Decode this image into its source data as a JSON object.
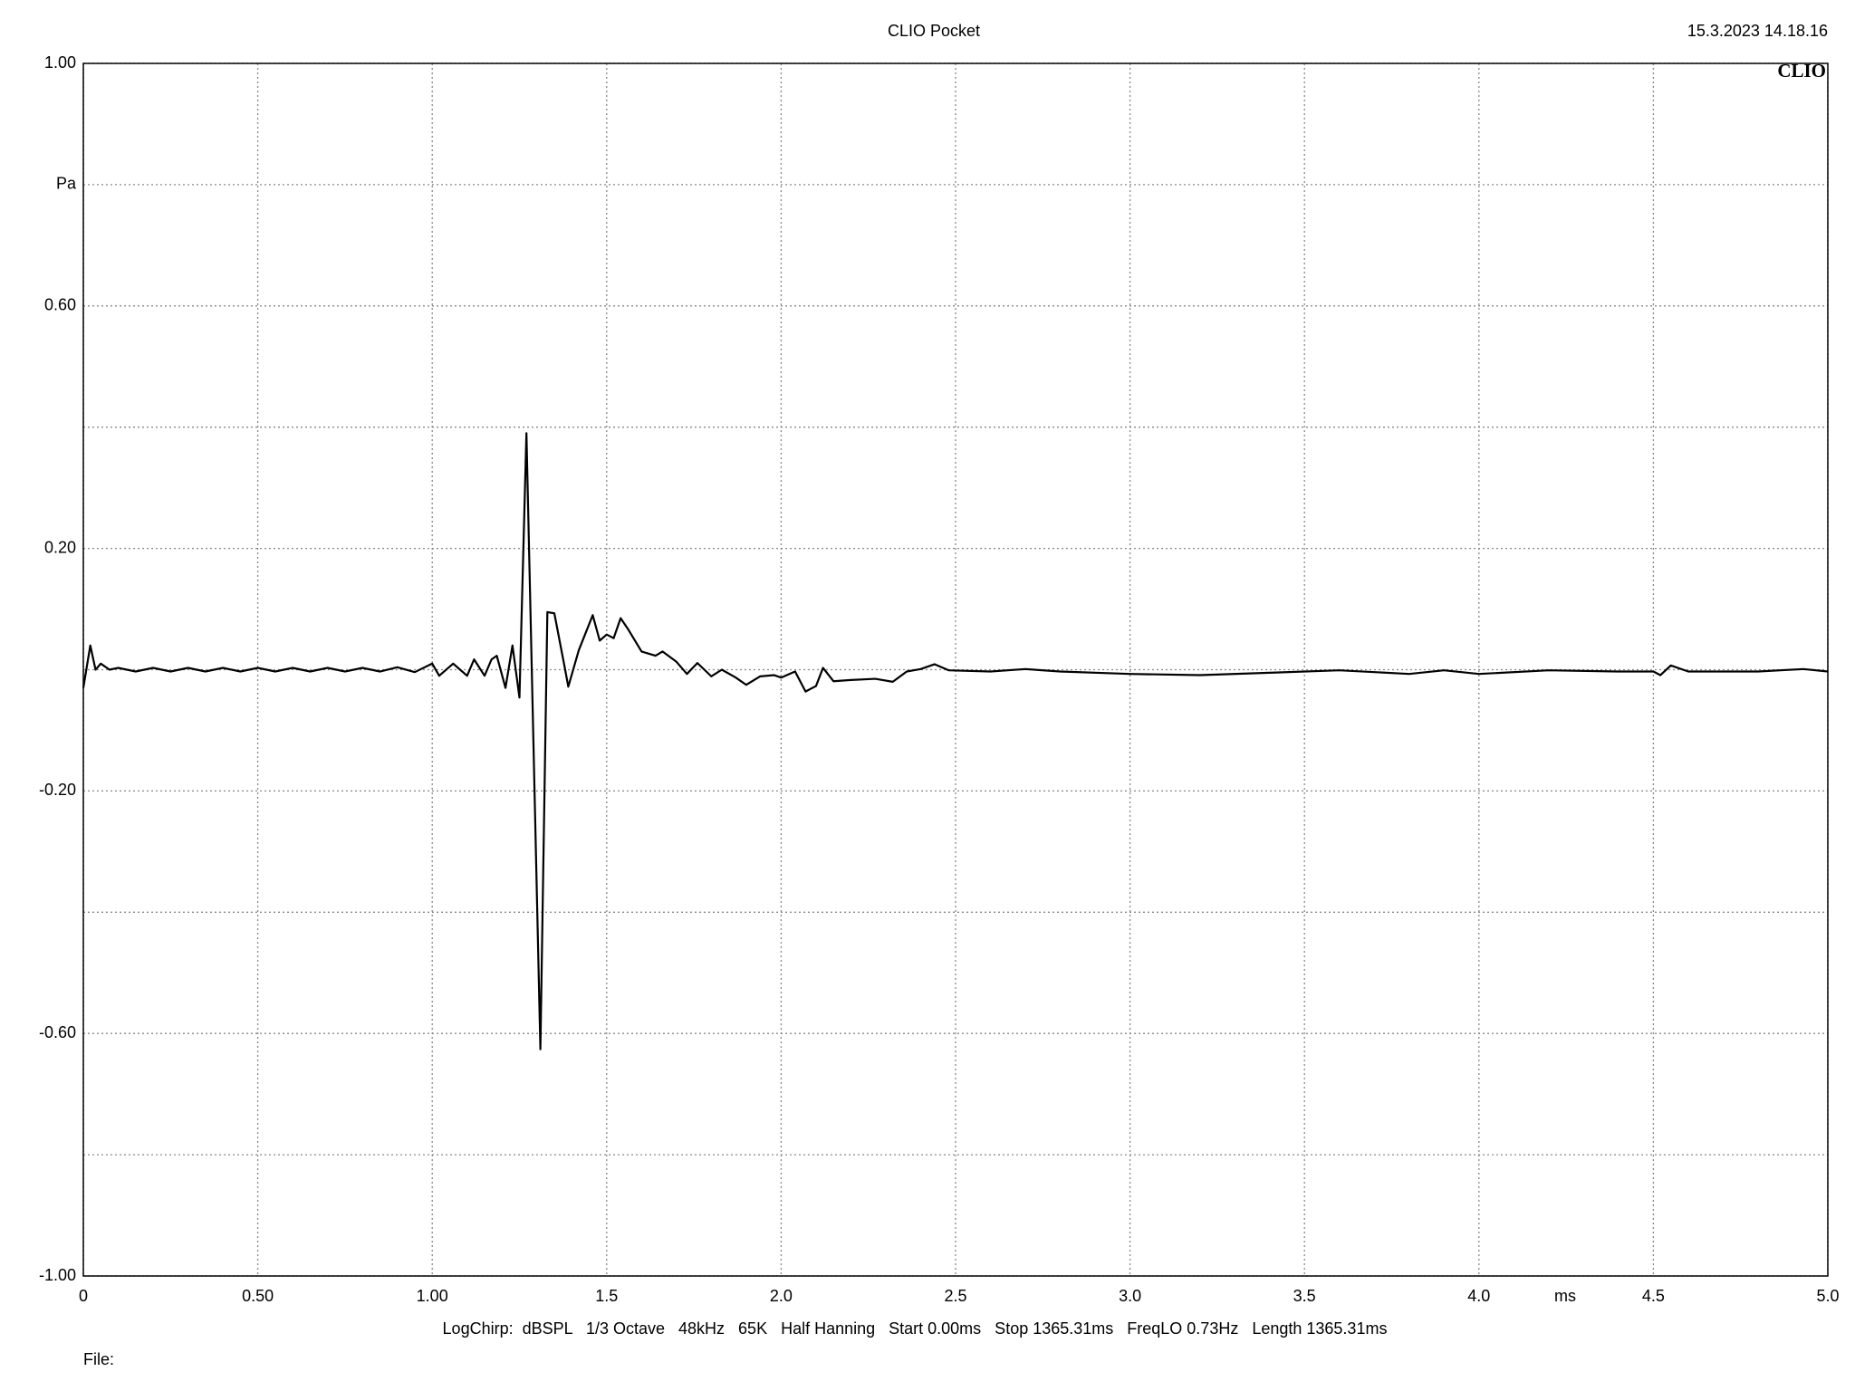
{
  "chart_data": {
    "type": "line",
    "title": "CLIO Pocket",
    "timestamp": "15.3.2023 14.18.16",
    "logo": "CLIO",
    "y_label": "Pa",
    "x_label": "ms",
    "footer": "LogChirp:  dBSPL   1/3 Octave   48kHz   65K   Half Hanning   Start 0.00ms   Stop 1365.31ms   FreqLO 0.73Hz   Length 1365.31ms",
    "file_label": "File:",
    "color": "#000000",
    "grid": true,
    "xlim": [
      0,
      5
    ],
    "ylim": [
      -1,
      1
    ],
    "xticks": [
      0,
      {
        "value": 0.5,
        "label": "0.50"
      },
      {
        "value": 1,
        "label": "1.00"
      },
      1.5,
      {
        "value": 2,
        "label": "2.0"
      },
      2.5,
      {
        "value": 3,
        "label": "3.0"
      },
      3.5,
      {
        "value": 4,
        "label": "4.0"
      },
      4.5,
      {
        "value": 5,
        "label": "5.0"
      }
    ],
    "yticks": [
      {
        "value": -1,
        "label": "-1.00"
      },
      {
        "value": -0.8,
        "label": null
      },
      {
        "value": -0.6,
        "label": "-0.60"
      },
      {
        "value": -0.4,
        "label": null
      },
      {
        "value": -0.2,
        "label": "-0.20"
      },
      {
        "value": 0,
        "label": null
      },
      {
        "value": 0.2,
        "label": "0.20"
      },
      {
        "value": 0.4,
        "label": null
      },
      {
        "value": 0.6,
        "label": "0.60"
      },
      {
        "value": 0.8,
        "label": null
      },
      {
        "value": 1,
        "label": "1.00"
      }
    ],
    "x": [
      0,
      0.02,
      0.035,
      0.05,
      0.075,
      0.1,
      0.15,
      0.2,
      0.25,
      0.3,
      0.35,
      0.4,
      0.45,
      0.5,
      0.55,
      0.6,
      0.65,
      0.7,
      0.75,
      0.8,
      0.85,
      0.9,
      0.95,
      1.0,
      1.02,
      1.06,
      1.1,
      1.12,
      1.15,
      1.17,
      1.185,
      1.21,
      1.23,
      1.25,
      1.27,
      1.31,
      1.33,
      1.35,
      1.38,
      1.39,
      1.42,
      1.46,
      1.48,
      1.5,
      1.52,
      1.54,
      1.56,
      1.6,
      1.64,
      1.66,
      1.7,
      1.73,
      1.76,
      1.8,
      1.83,
      1.87,
      1.9,
      1.94,
      1.98,
      2.0,
      2.04,
      2.07,
      2.1,
      2.12,
      2.15,
      2.2,
      2.27,
      2.32,
      2.36,
      2.4,
      2.44,
      2.48,
      2.6,
      2.7,
      2.8,
      3.0,
      3.2,
      3.4,
      3.6,
      3.8,
      3.9,
      4.0,
      4.2,
      4.4,
      4.5,
      4.52,
      4.55,
      4.6,
      4.8,
      4.93,
      5.0
    ],
    "values": [
      -0.03,
      0.04,
      0.0,
      0.01,
      0.0,
      0.003,
      -0.003,
      0.003,
      -0.003,
      0.003,
      -0.003,
      0.003,
      -0.003,
      0.003,
      -0.003,
      0.003,
      -0.003,
      0.003,
      -0.003,
      0.003,
      -0.003,
      0.004,
      -0.004,
      0.01,
      -0.01,
      0.01,
      -0.01,
      0.017,
      -0.01,
      0.017,
      0.023,
      -0.03,
      0.04,
      -0.046,
      0.39,
      -0.626,
      0.095,
      0.093,
      0.003,
      -0.028,
      0.032,
      0.09,
      0.048,
      0.058,
      0.052,
      0.085,
      0.068,
      0.03,
      0.023,
      0.03,
      0.013,
      -0.007,
      0.011,
      -0.011,
      0.0,
      -0.013,
      -0.025,
      -0.011,
      -0.009,
      -0.013,
      -0.003,
      -0.036,
      -0.027,
      0.003,
      -0.019,
      -0.017,
      -0.015,
      -0.02,
      -0.003,
      0.001,
      0.009,
      -0.001,
      -0.003,
      0.001,
      -0.003,
      -0.007,
      -0.009,
      -0.005,
      -0.001,
      -0.007,
      -0.001,
      -0.007,
      -0.001,
      -0.003,
      -0.003,
      -0.009,
      0.007,
      -0.003,
      -0.003,
      0.001,
      -0.003
    ]
  }
}
